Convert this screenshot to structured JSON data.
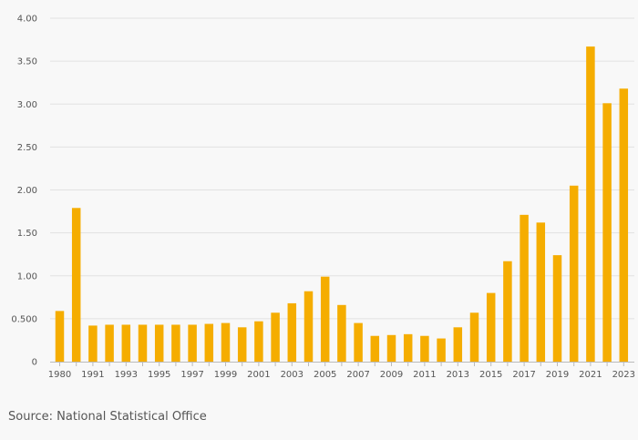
{
  "colors": {
    "bar": "#f5ad00",
    "grid": "#e2e2e2",
    "axis": "#bbbbbb",
    "text": "#555555"
  },
  "source_text": "Source: National Statistical Office",
  "chart_data": {
    "type": "bar",
    "title": "",
    "xlabel": "",
    "ylabel": "",
    "ylim": [
      0,
      4
    ],
    "yticks": [
      0,
      0.5,
      1,
      1.5,
      2,
      2.5,
      3,
      3.5,
      4
    ],
    "ytick_labels": [
      "0",
      "0.500",
      "1.00",
      "1.50",
      "2.00",
      "2.50",
      "3.00",
      "3.50",
      "4.00"
    ],
    "categories": [
      "1980",
      "1990",
      "1991",
      "1992",
      "1993",
      "1994",
      "1995",
      "1996",
      "1997",
      "1998",
      "1999",
      "2000",
      "2001",
      "2002",
      "2003",
      "2004",
      "2005",
      "2006",
      "2007",
      "2008",
      "2009",
      "2010",
      "2011",
      "2012",
      "2013",
      "2014",
      "2015",
      "2016",
      "2017",
      "2018",
      "2019",
      "2020",
      "2021",
      "2022",
      "2023"
    ],
    "xtick_labels": [
      "1980",
      "",
      "1991",
      "",
      "1993",
      "",
      "1995",
      "",
      "1997",
      "",
      "1999",
      "",
      "2001",
      "",
      "2003",
      "",
      "2005",
      "",
      "2007",
      "",
      "2009",
      "",
      "2011",
      "",
      "2013",
      "",
      "2015",
      "",
      "2017",
      "",
      "2019",
      "",
      "2021",
      "",
      "2023"
    ],
    "values": [
      0.59,
      1.79,
      0.42,
      0.43,
      0.43,
      0.43,
      0.43,
      0.43,
      0.43,
      0.44,
      0.45,
      0.4,
      0.47,
      0.57,
      0.68,
      0.82,
      0.99,
      0.66,
      0.45,
      0.3,
      0.31,
      0.32,
      0.3,
      0.27,
      0.4,
      0.57,
      0.8,
      1.17,
      1.71,
      1.62,
      1.24,
      2.05,
      3.67,
      3.01,
      3.18
    ]
  }
}
